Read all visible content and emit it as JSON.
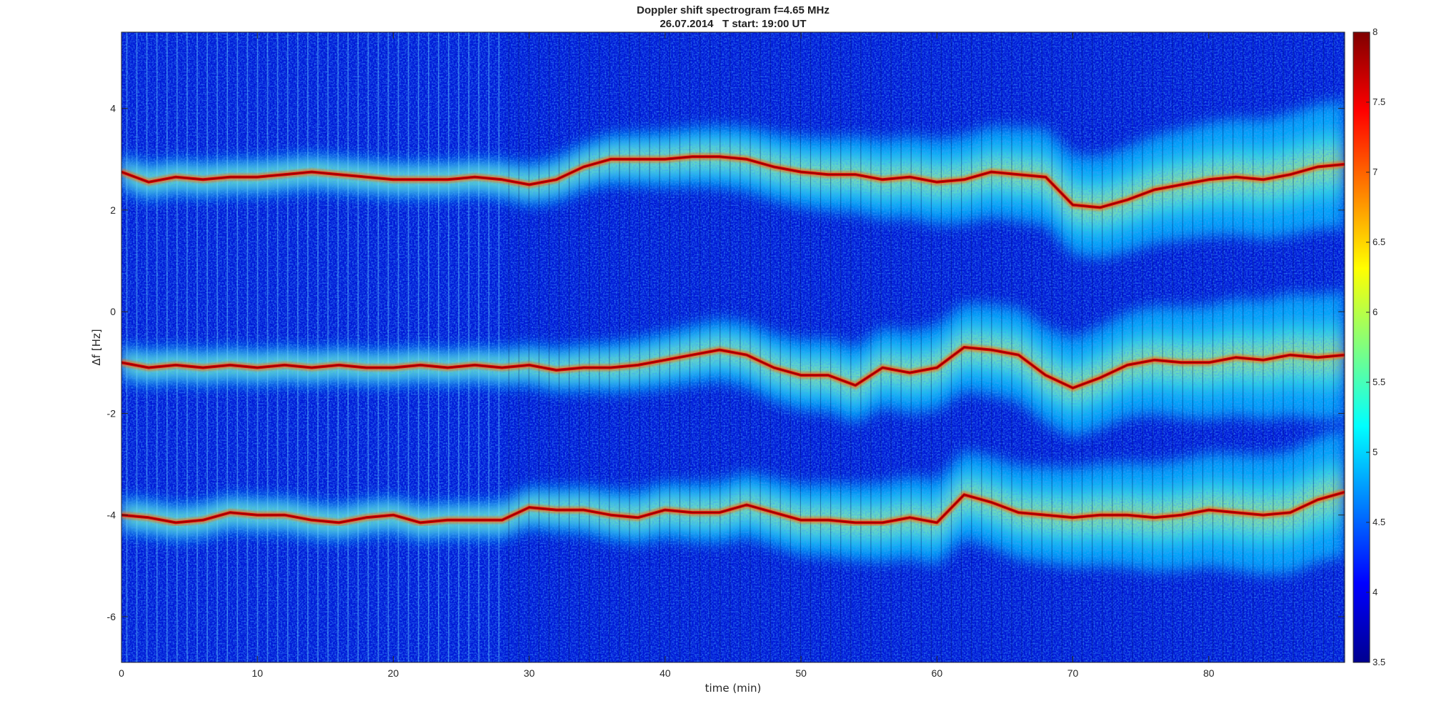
{
  "chart_data": {
    "type": "heatmap",
    "title": "Doppler shift spectrogram f=4.65 MHz",
    "subtitle": "26.07.2014   T start: 19:00 UT",
    "xlabel": "time (min)",
    "ylabel": "Δf [Hz]",
    "xlim": [
      0,
      90
    ],
    "ylim": [
      -6.9,
      5.5
    ],
    "x_ticks": [
      0,
      10,
      20,
      30,
      40,
      50,
      60,
      70,
      80
    ],
    "y_ticks": [
      4,
      2,
      0,
      -2,
      -4,
      -6
    ],
    "colormap": "jet",
    "clim": [
      3.5,
      8
    ],
    "colorbar_ticks": [
      8,
      7.5,
      7,
      6.5,
      6,
      5.5,
      5,
      4.5,
      4,
      3.5
    ],
    "grid": false,
    "series": [
      {
        "x": [
          0,
          2,
          4,
          6,
          8,
          10,
          12,
          14,
          16,
          18,
          20,
          22,
          24,
          26,
          28,
          30,
          32,
          34,
          36,
          38,
          40,
          42,
          44,
          46,
          48,
          50,
          52,
          54,
          56,
          58,
          60,
          62,
          64,
          66,
          68,
          70,
          72,
          74,
          76,
          78,
          80,
          82,
          84,
          86,
          88,
          90
        ],
        "y": [
          2.75,
          2.55,
          2.65,
          2.6,
          2.65,
          2.65,
          2.7,
          2.75,
          2.7,
          2.65,
          2.6,
          2.6,
          2.6,
          2.65,
          2.6,
          2.5,
          2.6,
          2.85,
          3.0,
          3.0,
          3.0,
          3.05,
          3.05,
          3.0,
          2.85,
          2.75,
          2.7,
          2.7,
          2.6,
          2.65,
          2.55,
          2.6,
          2.75,
          2.7,
          2.65,
          2.1,
          2.05,
          2.2,
          2.4,
          2.5,
          2.6,
          2.65,
          2.6,
          2.7,
          2.85,
          2.9
        ]
      },
      {
        "x": [
          0,
          2,
          4,
          6,
          8,
          10,
          12,
          14,
          16,
          18,
          20,
          22,
          24,
          26,
          28,
          30,
          32,
          34,
          36,
          38,
          40,
          42,
          44,
          46,
          48,
          50,
          52,
          54,
          56,
          58,
          60,
          62,
          64,
          66,
          68,
          70,
          72,
          74,
          76,
          78,
          80,
          82,
          84,
          86,
          88,
          90
        ],
        "y": [
          -1.0,
          -1.1,
          -1.05,
          -1.1,
          -1.05,
          -1.1,
          -1.05,
          -1.1,
          -1.05,
          -1.1,
          -1.1,
          -1.05,
          -1.1,
          -1.05,
          -1.1,
          -1.05,
          -1.15,
          -1.1,
          -1.1,
          -1.05,
          -0.95,
          -0.85,
          -0.75,
          -0.85,
          -1.1,
          -1.25,
          -1.25,
          -1.45,
          -1.1,
          -1.2,
          -1.1,
          -0.7,
          -0.75,
          -0.85,
          -1.25,
          -1.5,
          -1.3,
          -1.05,
          -0.95,
          -1.0,
          -1.0,
          -0.9,
          -0.95,
          -0.85,
          -0.9,
          -0.85
        ]
      },
      {
        "x": [
          0,
          2,
          4,
          6,
          8,
          10,
          12,
          14,
          16,
          18,
          20,
          22,
          24,
          26,
          28,
          30,
          32,
          34,
          36,
          38,
          40,
          42,
          44,
          46,
          48,
          50,
          52,
          54,
          56,
          58,
          60,
          62,
          64,
          66,
          68,
          70,
          72,
          74,
          76,
          78,
          80,
          82,
          84,
          86,
          88,
          90
        ],
        "y": [
          -4.0,
          -4.05,
          -4.15,
          -4.1,
          -3.95,
          -4.0,
          -4.0,
          -4.1,
          -4.15,
          -4.05,
          -4.0,
          -4.15,
          -4.1,
          -4.1,
          -4.1,
          -3.85,
          -3.9,
          -3.9,
          -4.0,
          -4.05,
          -3.9,
          -3.95,
          -3.95,
          -3.8,
          -3.95,
          -4.1,
          -4.1,
          -4.15,
          -4.15,
          -4.05,
          -4.15,
          -3.6,
          -3.75,
          -3.95,
          -4.0,
          -4.05,
          -4.0,
          -4.0,
          -4.05,
          -4.0,
          -3.9,
          -3.95,
          -4.0,
          -3.95,
          -3.7,
          -3.55
        ]
      }
    ]
  }
}
